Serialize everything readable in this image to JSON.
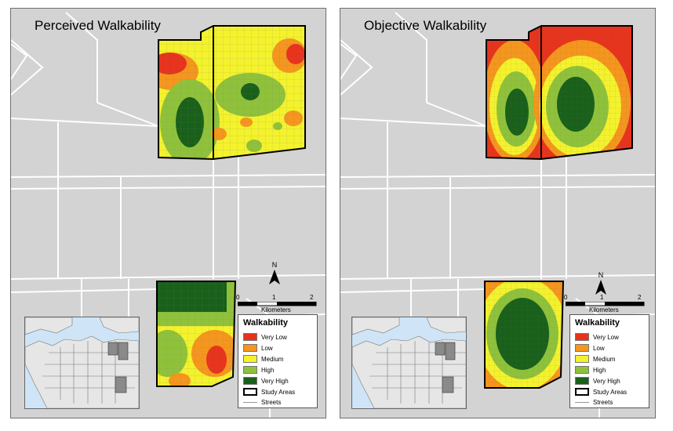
{
  "left_map": {
    "title": "Perceived Walkability",
    "north_label": "N",
    "scale": {
      "ticks": [
        "0",
        "1",
        "2"
      ],
      "unit": "Kilometers"
    }
  },
  "right_map": {
    "title": "Objective Walkability",
    "north_label": "N",
    "scale": {
      "ticks": [
        "0",
        "1",
        "2"
      ],
      "unit": "Kilometers"
    }
  },
  "legend": {
    "title": "Walkability",
    "items": [
      {
        "label": "Very Low",
        "color": "#e8331c"
      },
      {
        "label": "Low",
        "color": "#f5961d"
      },
      {
        "label": "Medium",
        "color": "#f4f22c"
      },
      {
        "label": "High",
        "color": "#8fc23a"
      },
      {
        "label": "Very High",
        "color": "#19601a"
      },
      {
        "label": "Study Areas",
        "symbol": "box"
      },
      {
        "label": "Streets",
        "symbol": "line"
      }
    ]
  },
  "colors": {
    "land": "#d3d3d3",
    "streets": "#ffffff",
    "water": "#cfe5f7"
  }
}
